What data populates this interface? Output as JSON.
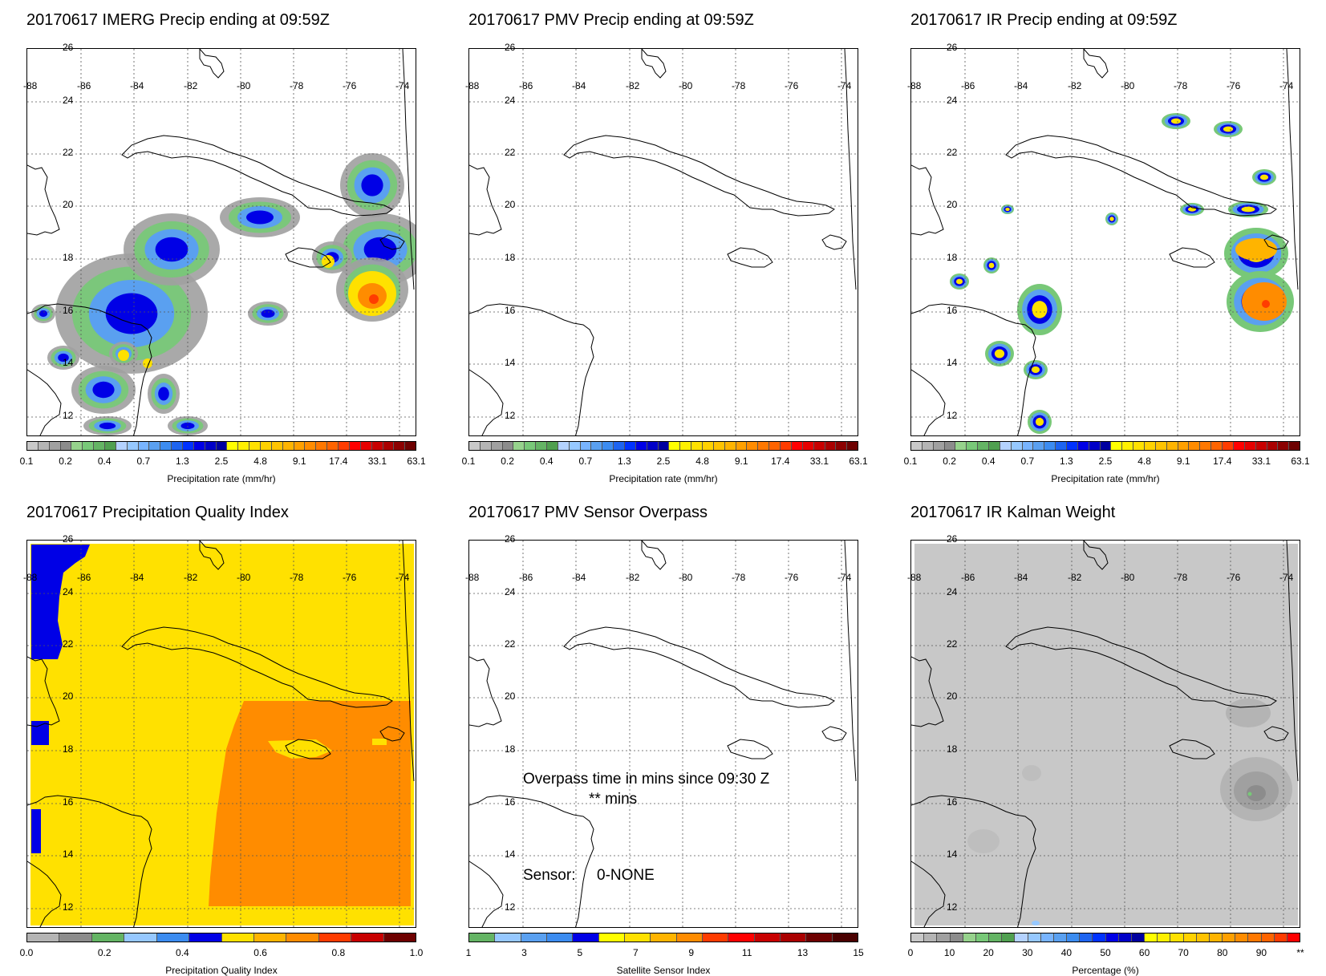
{
  "panels": [
    {
      "id": "imerg",
      "title": "20170617 IMERG Precip ending at 09:59Z",
      "kind": "precip",
      "cbar": "precip",
      "cbar_title": "Precipitation rate (mm/hr)"
    },
    {
      "id": "pmv",
      "title": "20170617 PMV Precip ending at 09:59Z",
      "kind": "blank",
      "cbar": "precip",
      "cbar_title": "Precipitation rate (mm/hr)"
    },
    {
      "id": "ir",
      "title": "20170617 IR Precip ending at 09:59Z",
      "kind": "ir",
      "cbar": "precip",
      "cbar_title": "Precipitation rate (mm/hr)"
    },
    {
      "id": "pqi",
      "title": "20170617 Precipitation Quality Index",
      "kind": "quality",
      "cbar": "quality",
      "cbar_title": "Precipitation Quality Index"
    },
    {
      "id": "overpass",
      "title": "20170617 PMV Sensor Overpass",
      "kind": "overpass",
      "cbar": "sensor",
      "cbar_title": "Satellite Sensor Index"
    },
    {
      "id": "kalman",
      "title": "20170617 IR Kalman Weight",
      "kind": "kalman",
      "cbar": "percent",
      "cbar_title": "Percentage (%)"
    }
  ],
  "map": {
    "lon_labels": [
      "-88",
      "-86",
      "-84",
      "-82",
      "-80",
      "-78",
      "-76",
      "-74"
    ],
    "lat_labels": [
      "26",
      "24",
      "22",
      "20",
      "18",
      "16",
      "14",
      "12"
    ]
  },
  "colorbars": {
    "precip": {
      "colors": [
        "#c8c8c8",
        "#b4b4b4",
        "#a0a0a0",
        "#8c8c8c",
        "#96d28c",
        "#78c878",
        "#64b464",
        "#50a050",
        "#b4d2ff",
        "#96c8ff",
        "#78b4ff",
        "#5aa0f0",
        "#3c8cf0",
        "#1e64f0",
        "#0032ff",
        "#0000e6",
        "#0000c8",
        "#0000a0",
        "#ffff00",
        "#fff000",
        "#ffe100",
        "#ffd200",
        "#ffc300",
        "#ffb400",
        "#ffa000",
        "#ff8c00",
        "#ff7800",
        "#ff6400",
        "#ff3c00",
        "#ff0000",
        "#e60000",
        "#c80000",
        "#aa0000",
        "#8c0000",
        "#6e0000"
      ],
      "labels": [
        "0.1",
        "0.2",
        "0.4",
        "0.7",
        "1.3",
        "2.5",
        "4.8",
        "9.1",
        "17.4",
        "33.1",
        "63.1"
      ]
    },
    "quality": {
      "colors": [
        "#b4b4b4",
        "#8c8c8c",
        "#64b464",
        "#96c8ff",
        "#3c8cf0",
        "#0000e6",
        "#ffe100",
        "#ffb400",
        "#ff8c00",
        "#ff3c00",
        "#c80000",
        "#6e0000"
      ],
      "labels": [
        "0.0",
        "0.2",
        "0.4",
        "0.6",
        "0.8",
        "1.0"
      ]
    },
    "sensor": {
      "colors": [
        "#64b464",
        "#96c8ff",
        "#5aa0f0",
        "#3c8cf0",
        "#0000e6",
        "#ffff00",
        "#ffe100",
        "#ffb400",
        "#ff8c00",
        "#ff3c00",
        "#ff0000",
        "#c80000",
        "#aa0000",
        "#6e0000",
        "#4a0000"
      ],
      "labels": [
        "1",
        "3",
        "5",
        "7",
        "9",
        "11",
        "13",
        "15"
      ]
    },
    "percent": {
      "colors": [
        "#c8c8c8",
        "#b4b4b4",
        "#a0a0a0",
        "#8c8c8c",
        "#96d28c",
        "#78c878",
        "#64b464",
        "#50a050",
        "#b4d2ff",
        "#96c8ff",
        "#78b4ff",
        "#5aa0f0",
        "#3c8cf0",
        "#1e64f0",
        "#0032ff",
        "#0000e6",
        "#0000c8",
        "#0000a0",
        "#ffff00",
        "#fff000",
        "#ffe100",
        "#ffd200",
        "#ffc300",
        "#ffb400",
        "#ffa000",
        "#ff8c00",
        "#ff7800",
        "#ff6400",
        "#ff3c00",
        "#ff0000"
      ],
      "labels": [
        "0",
        "10",
        "20",
        "30",
        "40",
        "50",
        "60",
        "70",
        "80",
        "90",
        "**"
      ]
    }
  },
  "overpass_text": {
    "line1": "Overpass time in mins since 09:30 Z",
    "line2": "** mins",
    "sensor_label": "Sensor:",
    "sensor_value": "0-NONE"
  }
}
